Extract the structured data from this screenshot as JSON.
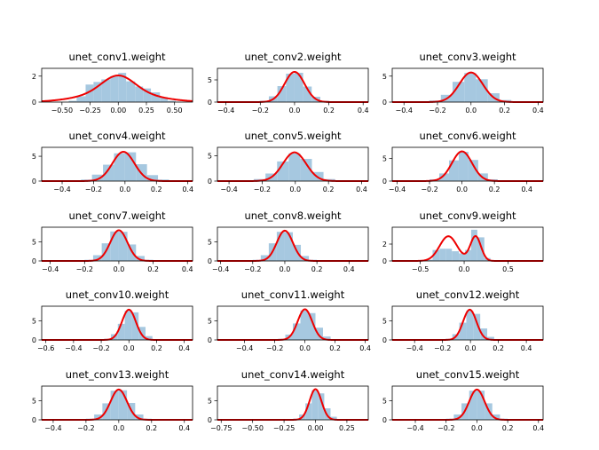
{
  "chart_data": [
    {
      "type": "histogram+kde",
      "title": "unet_conv1.weight",
      "xlim": [
        -0.68,
        0.66
      ],
      "ylim": [
        0,
        2.6
      ],
      "xticks": [
        -0.5,
        -0.25,
        0.0,
        0.25,
        0.5
      ],
      "xtick_labels": [
        "−0.50",
        "−0.25",
        "0.00",
        "0.25",
        "0.50"
      ],
      "yticks": [
        0,
        2
      ],
      "ytick_labels": [
        "0",
        "2"
      ],
      "bins": [
        [
          -0.44,
          -0.37,
          0.1
        ],
        [
          -0.37,
          -0.29,
          0.45
        ],
        [
          -0.29,
          -0.22,
          1.35
        ],
        [
          -0.22,
          -0.15,
          1.55
        ],
        [
          -0.15,
          -0.07,
          1.75
        ],
        [
          -0.07,
          0.0,
          2.0
        ],
        [
          0.0,
          0.07,
          2.25
        ],
        [
          0.07,
          0.15,
          1.6
        ],
        [
          0.15,
          0.22,
          1.2
        ],
        [
          0.22,
          0.29,
          1.05
        ],
        [
          0.29,
          0.37,
          0.75
        ],
        [
          0.37,
          0.44,
          0.35
        ],
        [
          0.44,
          0.51,
          0.1
        ]
      ],
      "kde": {
        "components": [
          [
            0.6,
            0.0,
            0.14
          ],
          [
            0.4,
            0.0,
            0.3
          ]
        ],
        "scale": 2.05
      }
    },
    {
      "type": "histogram+kde",
      "title": "unet_conv2.weight",
      "xlim": [
        -0.45,
        0.43
      ],
      "ylim": [
        0,
        7.6
      ],
      "xticks": [
        -0.4,
        -0.2,
        0.0,
        0.2,
        0.4
      ],
      "xtick_labels": [
        "−0.4",
        "−0.2",
        "0.0",
        "0.2",
        "0.4"
      ],
      "yticks": [
        0,
        5
      ],
      "ytick_labels": [
        "0",
        "5"
      ],
      "bins": [
        [
          -0.2,
          -0.15,
          0.3
        ],
        [
          -0.15,
          -0.1,
          1.3
        ],
        [
          -0.1,
          -0.05,
          3.6
        ],
        [
          -0.05,
          0.0,
          6.4
        ],
        [
          0.0,
          0.05,
          6.6
        ],
        [
          0.05,
          0.1,
          3.5
        ],
        [
          0.1,
          0.15,
          1.2
        ],
        [
          0.15,
          0.2,
          0.3
        ]
      ],
      "kde": {
        "components": [
          [
            1.0,
            0.0,
            0.058
          ]
        ],
        "scale": 6.8
      }
    },
    {
      "type": "histogram+kde",
      "title": "unet_conv3.weight",
      "xlim": [
        -0.47,
        0.43
      ],
      "ylim": [
        0,
        6.5
      ],
      "xticks": [
        -0.4,
        -0.2,
        0.0,
        0.2,
        0.4
      ],
      "xtick_labels": [
        "−0.4",
        "−0.2",
        "0.0",
        "0.2",
        "0.4"
      ],
      "yticks": [
        0,
        5
      ],
      "ytick_labels": [
        "0",
        "5"
      ],
      "bins": [
        [
          -0.25,
          -0.18,
          0.3
        ],
        [
          -0.18,
          -0.11,
          1.4
        ],
        [
          -0.11,
          -0.04,
          3.9
        ],
        [
          -0.04,
          0.03,
          5.6
        ],
        [
          0.03,
          0.1,
          4.4
        ],
        [
          0.1,
          0.17,
          1.7
        ],
        [
          0.17,
          0.24,
          0.4
        ]
      ],
      "kde": {
        "components": [
          [
            1.0,
            0.0,
            0.07
          ]
        ],
        "scale": 5.7
      }
    },
    {
      "type": "histogram+kde",
      "title": "unet_conv4.weight",
      "xlim": [
        -0.53,
        0.43
      ],
      "ylim": [
        0,
        6.8
      ],
      "xticks": [
        -0.4,
        -0.2,
        0.0,
        0.2,
        0.4
      ],
      "xtick_labels": [
        "−0.4",
        "−0.2",
        "0.0",
        "0.2",
        "0.4"
      ],
      "yticks": [
        0,
        5
      ],
      "ytick_labels": [
        "0",
        "5"
      ],
      "bins": [
        [
          -0.28,
          -0.21,
          0.3
        ],
        [
          -0.21,
          -0.14,
          1.3
        ],
        [
          -0.14,
          -0.07,
          3.3
        ],
        [
          -0.07,
          0.0,
          5.6
        ],
        [
          0.0,
          0.07,
          5.8
        ],
        [
          0.07,
          0.14,
          3.4
        ],
        [
          0.14,
          0.21,
          1.2
        ],
        [
          0.21,
          0.28,
          0.3
        ]
      ],
      "kde": {
        "components": [
          [
            1.0,
            -0.01,
            0.07
          ]
        ],
        "scale": 5.9
      }
    },
    {
      "type": "histogram+kde",
      "title": "unet_conv5.weight",
      "xlim": [
        -0.47,
        0.44
      ],
      "ylim": [
        0,
        6.7
      ],
      "xticks": [
        -0.4,
        -0.2,
        0.0,
        0.2,
        0.4
      ],
      "xtick_labels": [
        "−0.4",
        "−0.2",
        "0.0",
        "0.2",
        "0.4"
      ],
      "yticks": [
        0,
        5
      ],
      "ytick_labels": [
        "0",
        "5"
      ],
      "bins": [
        [
          -0.25,
          -0.18,
          0.4
        ],
        [
          -0.18,
          -0.11,
          1.5
        ],
        [
          -0.11,
          -0.04,
          3.9
        ],
        [
          -0.04,
          0.03,
          5.5
        ],
        [
          0.03,
          0.1,
          4.4
        ],
        [
          0.1,
          0.17,
          1.8
        ],
        [
          0.17,
          0.24,
          0.4
        ]
      ],
      "kde": {
        "components": [
          [
            1.0,
            -0.005,
            0.07
          ]
        ],
        "scale": 5.7
      }
    },
    {
      "type": "histogram+kde",
      "title": "unet_conv6.weight",
      "xlim": [
        -0.43,
        0.5
      ],
      "ylim": [
        0,
        7.5
      ],
      "xticks": [
        -0.4,
        -0.2,
        0.0,
        0.2,
        0.4
      ],
      "xtick_labels": [
        "−0.4",
        "−0.2",
        "0.0",
        "0.2",
        "0.4"
      ],
      "yticks": [
        0,
        5
      ],
      "ytick_labels": [
        "0",
        "5"
      ],
      "bins": [
        [
          -0.2,
          -0.14,
          0.4
        ],
        [
          -0.14,
          -0.08,
          1.7
        ],
        [
          -0.08,
          -0.02,
          4.6
        ],
        [
          -0.02,
          0.04,
          6.5
        ],
        [
          0.04,
          0.1,
          4.7
        ],
        [
          0.1,
          0.16,
          1.7
        ],
        [
          0.16,
          0.22,
          0.4
        ]
      ],
      "kde": {
        "components": [
          [
            1.0,
            0.0,
            0.062
          ]
        ],
        "scale": 6.6
      }
    },
    {
      "type": "histogram+kde",
      "title": "unet_conv7.weight",
      "xlim": [
        -0.45,
        0.43
      ],
      "ylim": [
        0,
        8.8
      ],
      "xticks": [
        -0.4,
        -0.2,
        0.0,
        0.2,
        0.4
      ],
      "xtick_labels": [
        "−0.4",
        "−0.2",
        "0.0",
        "0.2",
        "0.4"
      ],
      "yticks": [
        0,
        5
      ],
      "ytick_labels": [
        "0",
        "5"
      ],
      "bins": [
        [
          -0.2,
          -0.15,
          0.3
        ],
        [
          -0.15,
          -0.1,
          1.5
        ],
        [
          -0.1,
          -0.05,
          4.6
        ],
        [
          -0.05,
          0.0,
          7.7
        ],
        [
          0.0,
          0.05,
          7.6
        ],
        [
          0.05,
          0.1,
          4.3
        ],
        [
          0.1,
          0.15,
          1.3
        ],
        [
          0.15,
          0.2,
          0.3
        ]
      ],
      "kde": {
        "components": [
          [
            1.0,
            0.0,
            0.05
          ]
        ],
        "scale": 8.0
      }
    },
    {
      "type": "histogram+kde",
      "title": "unet_conv8.weight",
      "xlim": [
        -0.42,
        0.52
      ],
      "ylim": [
        0,
        8.8
      ],
      "xticks": [
        -0.4,
        -0.2,
        0.0,
        0.2,
        0.4
      ],
      "xtick_labels": [
        "−0.4",
        "−0.2",
        "0.0",
        "0.2",
        "0.4"
      ],
      "yticks": [
        0,
        5
      ],
      "ytick_labels": [
        "0",
        "5"
      ],
      "bins": [
        [
          -0.2,
          -0.15,
          0.3
        ],
        [
          -0.15,
          -0.1,
          1.5
        ],
        [
          -0.1,
          -0.05,
          4.6
        ],
        [
          -0.05,
          0.0,
          7.6
        ],
        [
          0.0,
          0.05,
          7.5
        ],
        [
          0.05,
          0.1,
          4.2
        ],
        [
          0.1,
          0.15,
          1.3
        ],
        [
          0.15,
          0.2,
          0.3
        ]
      ],
      "kde": {
        "components": [
          [
            1.0,
            0.0,
            0.05
          ]
        ],
        "scale": 7.9
      }
    },
    {
      "type": "histogram+kde",
      "title": "unet_conv9.weight",
      "xlim": [
        -0.82,
        0.9
      ],
      "ylim": [
        0,
        4.0
      ],
      "xticks": [
        -0.5,
        0.0,
        0.5
      ],
      "xtick_labels": [
        "−0.5",
        "0.0",
        "0.5"
      ],
      "yticks": [
        0,
        2
      ],
      "ytick_labels": [
        "0",
        "2"
      ],
      "bins": [
        [
          -0.43,
          -0.36,
          0.15
        ],
        [
          -0.36,
          -0.28,
          1.3
        ],
        [
          -0.28,
          -0.21,
          1.45
        ],
        [
          -0.21,
          -0.14,
          1.45
        ],
        [
          -0.14,
          -0.06,
          1.15
        ],
        [
          -0.06,
          0.01,
          0.9
        ],
        [
          0.01,
          0.08,
          1.3
        ],
        [
          0.08,
          0.15,
          3.7
        ],
        [
          0.15,
          0.23,
          2.8
        ],
        [
          0.23,
          0.3,
          0.35
        ]
      ],
      "kde": {
        "components": [
          [
            0.5,
            -0.18,
            0.1
          ],
          [
            0.5,
            0.13,
            0.06
          ]
        ],
        "scale": 2.95
      }
    },
    {
      "type": "histogram+kde",
      "title": "unet_conv10.weight",
      "xlim": [
        -0.63,
        0.46
      ],
      "ylim": [
        0,
        8.8
      ],
      "xticks": [
        -0.6,
        -0.4,
        -0.2,
        0.0,
        0.2,
        0.4
      ],
      "xtick_labels": [
        "−0.6",
        "−0.4",
        "−0.2",
        "0.0",
        "0.2",
        "0.4"
      ],
      "yticks": [
        0,
        5
      ],
      "ytick_labels": [
        "0",
        "5"
      ],
      "bins": [
        [
          -0.18,
          -0.13,
          0.3
        ],
        [
          -0.13,
          -0.08,
          1.5
        ],
        [
          -0.08,
          -0.03,
          4.2
        ],
        [
          -0.03,
          0.02,
          7.6
        ],
        [
          0.02,
          0.07,
          7.2
        ],
        [
          0.07,
          0.12,
          3.4
        ],
        [
          0.12,
          0.17,
          1.0
        ],
        [
          0.17,
          0.22,
          0.2
        ]
      ],
      "kde": {
        "components": [
          [
            1.0,
            0.0,
            0.05
          ]
        ],
        "scale": 7.9
      }
    },
    {
      "type": "histogram+kde",
      "title": "unet_conv11.weight",
      "xlim": [
        -0.58,
        0.42
      ],
      "ylim": [
        0,
        8.8
      ],
      "xticks": [
        -0.4,
        -0.2,
        0.0,
        0.2,
        0.4
      ],
      "xtick_labels": [
        "−0.4",
        "−0.2",
        "0.0",
        "0.2",
        "0.4"
      ],
      "yticks": [
        0,
        5
      ],
      "ytick_labels": [
        "0",
        "5"
      ],
      "bins": [
        [
          -0.18,
          -0.13,
          0.3
        ],
        [
          -0.13,
          -0.08,
          1.4
        ],
        [
          -0.08,
          -0.03,
          4.3
        ],
        [
          -0.03,
          0.02,
          7.7
        ],
        [
          0.02,
          0.07,
          7.0
        ],
        [
          0.07,
          0.12,
          3.2
        ],
        [
          0.12,
          0.17,
          0.9
        ],
        [
          0.17,
          0.22,
          0.2
        ]
      ],
      "kde": {
        "components": [
          [
            1.0,
            0.0,
            0.048
          ]
        ],
        "scale": 8.0
      }
    },
    {
      "type": "histogram+kde",
      "title": "unet_conv12.weight",
      "xlim": [
        -0.56,
        0.52
      ],
      "ylim": [
        0,
        8.8
      ],
      "xticks": [
        -0.4,
        -0.2,
        0.0,
        0.2,
        0.4
      ],
      "xtick_labels": [
        "−0.4",
        "−0.2",
        "0.0",
        "0.2",
        "0.4"
      ],
      "yticks": [
        0,
        5
      ],
      "ytick_labels": [
        "0",
        "5"
      ],
      "bins": [
        [
          -0.18,
          -0.13,
          0.3
        ],
        [
          -0.13,
          -0.08,
          1.5
        ],
        [
          -0.08,
          -0.03,
          4.5
        ],
        [
          -0.03,
          0.02,
          7.6
        ],
        [
          0.02,
          0.07,
          6.8
        ],
        [
          0.07,
          0.12,
          3.0
        ],
        [
          0.12,
          0.17,
          0.8
        ],
        [
          0.17,
          0.22,
          0.2
        ]
      ],
      "kde": {
        "components": [
          [
            1.0,
            -0.005,
            0.048
          ]
        ],
        "scale": 7.9
      }
    },
    {
      "type": "histogram+kde",
      "title": "unet_conv13.weight",
      "xlim": [
        -0.47,
        0.45
      ],
      "ylim": [
        0,
        8.8
      ],
      "xticks": [
        -0.4,
        -0.2,
        0.0,
        0.2,
        0.4
      ],
      "xtick_labels": [
        "−0.4",
        "−0.2",
        "0.0",
        "0.2",
        "0.4"
      ],
      "yticks": [
        0,
        5
      ],
      "ytick_labels": [
        "0",
        "5"
      ],
      "bins": [
        [
          -0.2,
          -0.15,
          0.3
        ],
        [
          -0.15,
          -0.1,
          1.4
        ],
        [
          -0.1,
          -0.05,
          4.3
        ],
        [
          -0.05,
          0.0,
          7.6
        ],
        [
          0.0,
          0.05,
          7.7
        ],
        [
          0.05,
          0.1,
          4.4
        ],
        [
          0.1,
          0.15,
          1.4
        ],
        [
          0.15,
          0.2,
          0.3
        ]
      ],
      "kde": {
        "components": [
          [
            1.0,
            0.0,
            0.05
          ]
        ],
        "scale": 7.9
      }
    },
    {
      "type": "histogram+kde",
      "title": "unet_conv14.weight",
      "xlim": [
        -0.78,
        0.42
      ],
      "ylim": [
        0,
        8.8
      ],
      "xticks": [
        -0.75,
        -0.5,
        -0.25,
        0.0,
        0.25
      ],
      "xtick_labels": [
        "−0.75",
        "−0.50",
        "−0.25",
        "0.00",
        "0.25"
      ],
      "yticks": [
        0,
        5
      ],
      "ytick_labels": [
        "0",
        "5"
      ],
      "bins": [
        [
          -0.18,
          -0.13,
          0.3
        ],
        [
          -0.13,
          -0.08,
          1.4
        ],
        [
          -0.08,
          -0.03,
          4.3
        ],
        [
          -0.03,
          0.02,
          7.7
        ],
        [
          0.02,
          0.07,
          6.9
        ],
        [
          0.07,
          0.12,
          3.0
        ],
        [
          0.12,
          0.17,
          0.8
        ],
        [
          0.17,
          0.22,
          0.2
        ]
      ],
      "kde": {
        "components": [
          [
            1.0,
            0.0,
            0.048
          ]
        ],
        "scale": 8.0
      }
    },
    {
      "type": "histogram+kde",
      "title": "unet_conv15.weight",
      "xlim": [
        -0.55,
        0.43
      ],
      "ylim": [
        0,
        8.8
      ],
      "xticks": [
        -0.4,
        -0.2,
        0.0,
        0.2,
        0.4
      ],
      "xtick_labels": [
        "−0.4",
        "−0.2",
        "0.0",
        "0.2",
        "0.4"
      ],
      "yticks": [
        0,
        5
      ],
      "ytick_labels": [
        "0",
        "5"
      ],
      "bins": [
        [
          -0.2,
          -0.15,
          0.3
        ],
        [
          -0.15,
          -0.1,
          1.4
        ],
        [
          -0.1,
          -0.05,
          4.3
        ],
        [
          -0.05,
          0.0,
          7.6
        ],
        [
          0.0,
          0.05,
          7.6
        ],
        [
          0.05,
          0.1,
          4.3
        ],
        [
          0.1,
          0.15,
          1.4
        ],
        [
          0.15,
          0.2,
          0.3
        ]
      ],
      "kde": {
        "components": [
          [
            1.0,
            0.0,
            0.05
          ]
        ],
        "scale": 7.9
      }
    }
  ],
  "colors": {
    "hist": "#a6c8e0",
    "kde": "#ee0000",
    "axes": "#000000"
  }
}
